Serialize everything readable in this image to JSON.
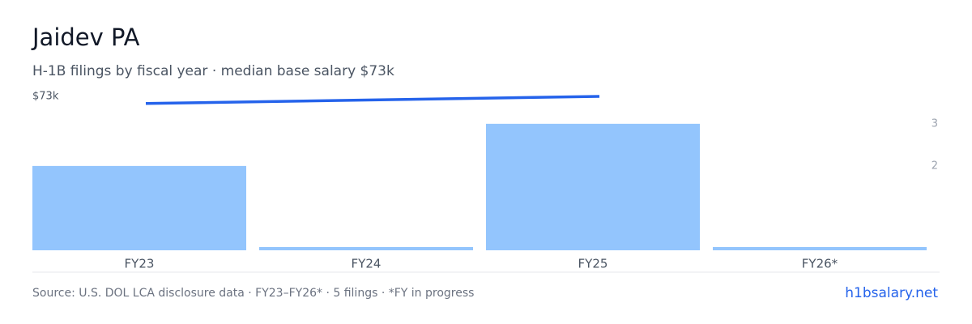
{
  "chart_data": {
    "type": "bar-line",
    "title": "Jaidev PA",
    "subtitle": "H-1B filings by fiscal year · median base salary $73k",
    "categories": [
      "FY23",
      "FY24",
      "FY25",
      "FY26*"
    ],
    "series": [
      {
        "name": "H-1B filings",
        "color": "#93c5fd",
        "axis": "y2",
        "values": [
          2,
          0,
          3,
          0
        ]
      },
      {
        "name": "Median base salary",
        "color": "#2563eb",
        "axis": "y",
        "values": [
          72400,
          72700,
          73000,
          null
        ]
      }
    ],
    "ylim": [
      60000,
      73000
    ],
    "yticks": [
      {
        "value": 73000,
        "label": "$73k"
      }
    ],
    "y2lim": [
      0,
      3.65
    ],
    "y2ticks": [
      2,
      3
    ],
    "source": "Source: U.S. DOL LCA disclosure data · FY23–FY26* · 5 filings · *FY in progress",
    "brand": "h1bsalary.net"
  }
}
